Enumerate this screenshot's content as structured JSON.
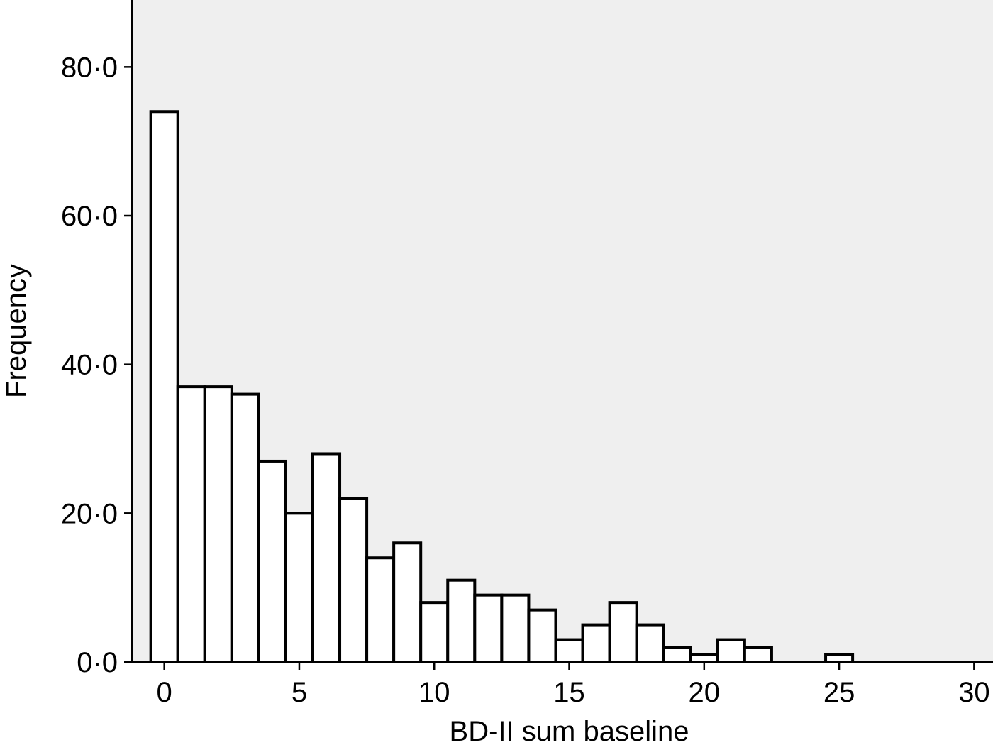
{
  "chart_data": {
    "type": "bar",
    "title": "",
    "xlabel": "BD-II sum baseline",
    "ylabel": "Frequency",
    "xlim": [
      -1.2,
      30.7
    ],
    "ylim": [
      0,
      89
    ],
    "x_ticks": [
      0,
      5,
      10,
      15,
      20,
      25,
      30
    ],
    "x_tick_labels": [
      "0",
      "5",
      "10",
      "15",
      "20",
      "25",
      "30"
    ],
    "y_ticks": [
      0,
      20,
      40,
      60,
      80
    ],
    "y_tick_labels": [
      "0·0",
      "20·0",
      "40·0",
      "60·0",
      "80·0"
    ],
    "bin_width": 1,
    "bins": [
      0,
      1,
      2,
      3,
      4,
      5,
      6,
      7,
      8,
      9,
      10,
      11,
      12,
      13,
      14,
      15,
      16,
      17,
      18,
      19,
      20,
      21,
      22,
      25
    ],
    "values": [
      74,
      37,
      37,
      36,
      27,
      20,
      28,
      22,
      14,
      16,
      8,
      11,
      9,
      9,
      7,
      3,
      5,
      8,
      5,
      2,
      1,
      3,
      2,
      1
    ],
    "plot_background": "#efefef",
    "bar_fill": "#ffffff",
    "bar_stroke": "#000000",
    "grid": false
  }
}
